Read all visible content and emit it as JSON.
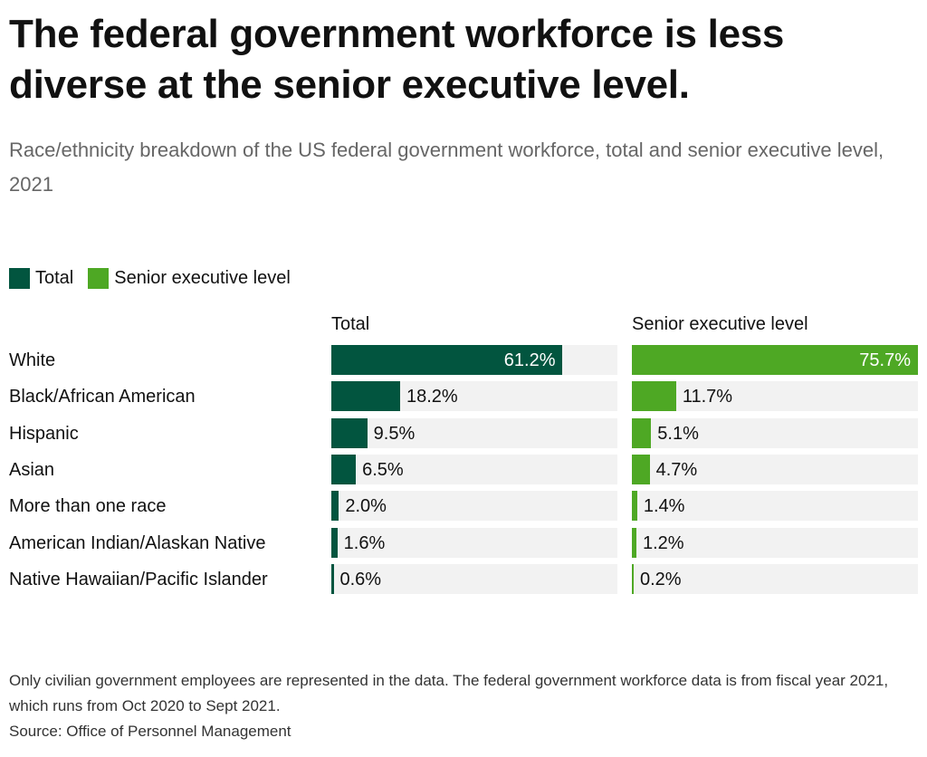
{
  "title": "The federal government workforce is less diverse at the senior executive level.",
  "subtitle": "Race/ethnicity breakdown of the US federal government workforce, total and senior executive level, 2021",
  "colors": {
    "total": "#02553F",
    "senior": "#4EA824"
  },
  "chart_data": {
    "type": "bar",
    "categories": [
      "White",
      "Black/African American",
      "Hispanic",
      "Asian",
      "More than one race",
      "American Indian/Alaskan Native",
      "Native Hawaiian/Pacific Islander"
    ],
    "series": [
      {
        "name": "Total",
        "values": [
          61.2,
          18.2,
          9.5,
          6.5,
          2.0,
          1.6,
          0.6
        ],
        "labels": [
          "61.2%",
          "18.2%",
          "9.5%",
          "6.5%",
          "2.0%",
          "1.6%",
          "0.6%"
        ]
      },
      {
        "name": "Senior executive level",
        "values": [
          75.7,
          11.7,
          5.1,
          4.7,
          1.4,
          1.2,
          0.2
        ],
        "labels": [
          "75.7%",
          "11.7%",
          "5.1%",
          "4.7%",
          "1.4%",
          "1.2%",
          "0.2%"
        ]
      }
    ],
    "unit": "%",
    "xlim": [
      0,
      75.7
    ],
    "legend": [
      "Total",
      "Senior executive level"
    ],
    "legend_position": "top-left"
  },
  "footnote": "Only civilian government employees are represented in the data. The federal government workforce data is from fiscal year 2021, which runs from Oct 2020 to Sept 2021.",
  "source": "Source: Office of Personnel Management"
}
